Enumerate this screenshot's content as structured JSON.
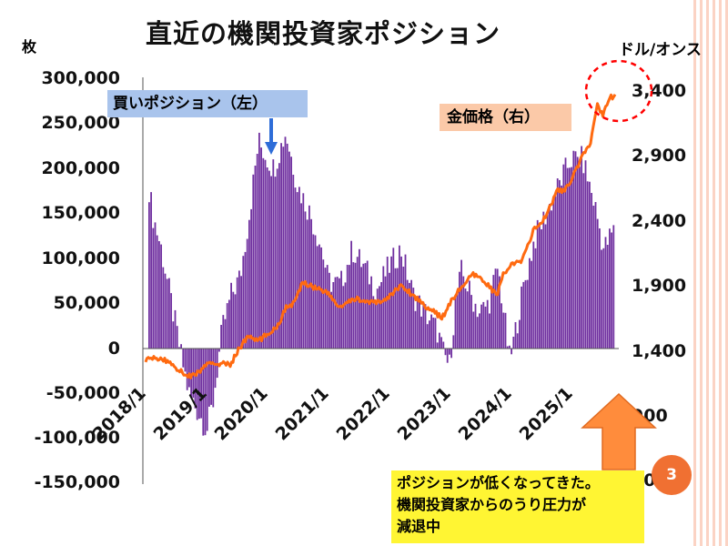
{
  "title": "直近の機関投資家ポジション",
  "left_unit": "枚",
  "right_unit": "ドル/オンス",
  "labels": {
    "buy": "買いポジション（左）",
    "gold": "金価格（右）"
  },
  "note_lines": [
    "ポジションが低くなってきた。",
    "機関投資家からのうり圧力が",
    "減退中"
  ],
  "slide_number": "3",
  "colors": {
    "bars": "#7030a0",
    "line": "#ff6a10",
    "arrow": "#ff8c3c",
    "highlight": "#ff0000"
  },
  "chart_data": {
    "type": "bar+line",
    "title": "直近の機関投資家ポジション",
    "x_ticks": [
      "2018/1",
      "2019/1",
      "2020/1",
      "2021/1",
      "2022/1",
      "2023/1",
      "2024/1",
      "2025/1"
    ],
    "y_left": {
      "label": "枚",
      "ylim": [
        -150000,
        300000
      ],
      "ticks": [
        "300,000",
        "250,000",
        "200,000",
        "150,000",
        "100,000",
        "50,000",
        "0",
        "-50,000",
        "-100,000",
        "-150,000"
      ]
    },
    "y_right": {
      "label": "ドル/オンス",
      "ticks": [
        "3,400",
        "2,900",
        "2,400",
        "1,900",
        "1,400",
        "900",
        "400"
      ]
    },
    "series": [
      {
        "name": "買いポジション（左）",
        "axis": "left",
        "kind": "bar",
        "t": [
          2018.0,
          2018.1,
          2018.25,
          2018.4,
          2018.55,
          2018.7,
          2018.85,
          2019.0,
          2019.1,
          2019.25,
          2019.4,
          2019.55,
          2019.7,
          2019.85,
          2020.0,
          2020.1,
          2020.2,
          2020.3,
          2020.5,
          2020.7,
          2020.9,
          2021.0,
          2021.2,
          2021.4,
          2021.6,
          2021.8,
          2022.0,
          2022.2,
          2022.4,
          2022.6,
          2022.8,
          2022.9,
          2023.0,
          2023.1,
          2023.2,
          2023.35,
          2023.5,
          2023.65,
          2023.8,
          2023.9,
          2024.0,
          2024.2,
          2024.4,
          2024.6,
          2024.8,
          2025.0,
          2025.2,
          2025.4,
          2025.55,
          2025.7
        ],
        "values": [
          200000,
          150000,
          110000,
          55000,
          0,
          -50000,
          -70000,
          -90000,
          -60000,
          20000,
          60000,
          80000,
          150000,
          230000,
          210000,
          200000,
          220000,
          240000,
          180000,
          150000,
          110000,
          75000,
          70000,
          110000,
          90000,
          65000,
          90000,
          110000,
          60000,
          40000,
          20000,
          -5000,
          -20000,
          50000,
          85000,
          60000,
          40000,
          50000,
          90000,
          40000,
          -15000,
          60000,
          120000,
          150000,
          180000,
          210000,
          210000,
          160000,
          110000,
          130000
        ]
      },
      {
        "name": "金価格（右）",
        "axis": "right",
        "kind": "line",
        "t": [
          2018.0,
          2018.2,
          2018.4,
          2018.6,
          2018.75,
          2018.9,
          2019.0,
          2019.2,
          2019.4,
          2019.55,
          2019.7,
          2019.85,
          2020.0,
          2020.2,
          2020.3,
          2020.45,
          2020.6,
          2020.75,
          2020.9,
          2021.0,
          2021.2,
          2021.4,
          2021.5,
          2021.7,
          2021.9,
          2022.0,
          2022.2,
          2022.4,
          2022.6,
          2022.8,
          2022.9,
          2023.0,
          2023.2,
          2023.4,
          2023.6,
          2023.8,
          2023.9,
          2024.0,
          2024.2,
          2024.4,
          2024.6,
          2024.8,
          2024.9,
          2025.0,
          2025.2,
          2025.35,
          2025.45,
          2025.55,
          2025.65
        ],
        "values": [
          1330,
          1340,
          1310,
          1230,
          1200,
          1240,
          1290,
          1300,
          1290,
          1420,
          1510,
          1470,
          1520,
          1600,
          1720,
          1760,
          1930,
          1890,
          1870,
          1840,
          1730,
          1780,
          1800,
          1760,
          1780,
          1800,
          1900,
          1830,
          1750,
          1680,
          1650,
          1750,
          1880,
          1980,
          1930,
          1820,
          1980,
          2050,
          2080,
          2320,
          2420,
          2640,
          2620,
          2680,
          2880,
          3000,
          3300,
          3200,
          3350
        ]
      }
    ]
  }
}
